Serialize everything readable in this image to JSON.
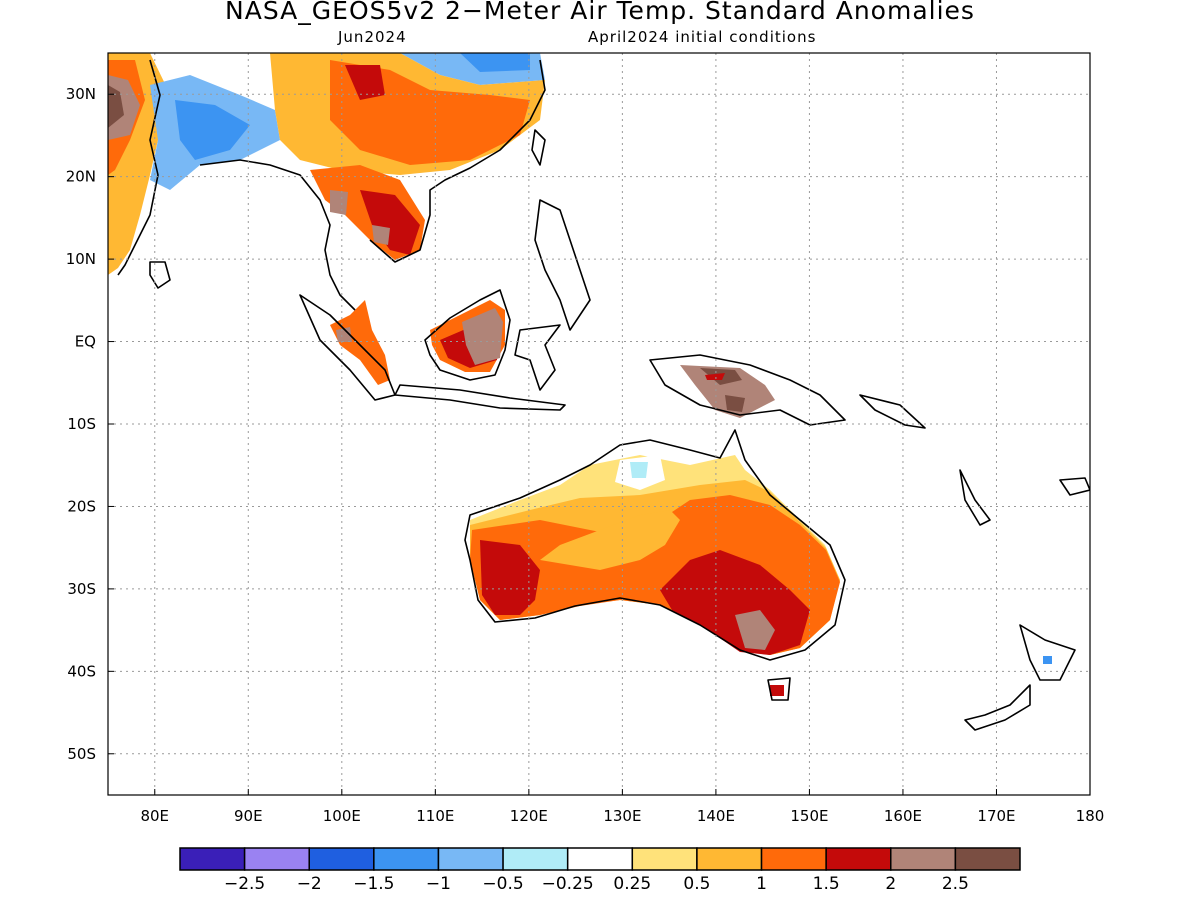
{
  "header": {
    "title": "NASA_GEOS5v2 2−Meter Air Temp. Standard Anomalies",
    "valid_month": "Jun2024",
    "init": "April2024 initial conditions"
  },
  "map": {
    "lon_range": [
      75,
      180
    ],
    "lat_range": [
      -55,
      35
    ],
    "lat_ticks": [
      {
        "v": 30,
        "label": "30N"
      },
      {
        "v": 20,
        "label": "20N"
      },
      {
        "v": 10,
        "label": "10N"
      },
      {
        "v": 0,
        "label": "EQ"
      },
      {
        "v": -10,
        "label": "10S"
      },
      {
        "v": -20,
        "label": "20S"
      },
      {
        "v": -30,
        "label": "30S"
      },
      {
        "v": -40,
        "label": "40S"
      },
      {
        "v": -50,
        "label": "50S"
      }
    ],
    "lon_ticks": [
      {
        "v": 80,
        "label": "80E"
      },
      {
        "v": 90,
        "label": "90E"
      },
      {
        "v": 100,
        "label": "100E"
      },
      {
        "v": 110,
        "label": "110E"
      },
      {
        "v": 120,
        "label": "120E"
      },
      {
        "v": 130,
        "label": "130E"
      },
      {
        "v": 140,
        "label": "140E"
      },
      {
        "v": 150,
        "label": "150E"
      },
      {
        "v": 160,
        "label": "160E"
      },
      {
        "v": 170,
        "label": "170E"
      },
      {
        "v": 180,
        "label": "180"
      }
    ],
    "grid": "dotted"
  },
  "colorbar": {
    "colors": [
      "#3a1fb8",
      "#9a82f2",
      "#1f5fe0",
      "#3c94f2",
      "#78b8f5",
      "#b0ecf7",
      "#ffffff",
      "#ffe27a",
      "#ffb833",
      "#ff6a0a",
      "#c40a0a",
      "#b08478",
      "#7a4e42"
    ],
    "labels": [
      "−2.5",
      "−2",
      "−1.5",
      "−1",
      "−0.5",
      "−0.25",
      "0.25",
      "0.5",
      "1",
      "1.5",
      "2",
      "2.5"
    ]
  }
}
